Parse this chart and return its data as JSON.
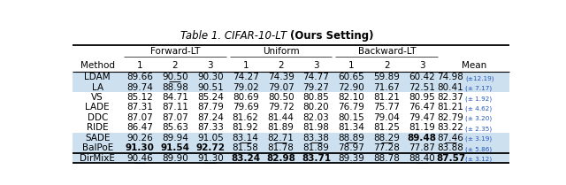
{
  "title_italic": "Table 1. CIFAR-10-LT ",
  "title_bold": "(Ours Setting)",
  "groups": [
    "Forward-LT",
    "Uniform",
    "Backward-LT"
  ],
  "methods": [
    "LDAM",
    "LA",
    "VS",
    "LADE",
    "DDC",
    "RIDE",
    "SADE",
    "BalPoE",
    "DirMixE"
  ],
  "data": {
    "LDAM": [
      [
        "89.66",
        "90.50",
        "90.30"
      ],
      [
        "74.27",
        "74.39",
        "74.77"
      ],
      [
        "60.65",
        "59.89",
        "60.42"
      ],
      "74.98",
      "±12.19"
    ],
    "LA": [
      [
        "89.74",
        "88.98",
        "90.51"
      ],
      [
        "79.02",
        "79.07",
        "79.27"
      ],
      [
        "72.90",
        "71.67",
        "72.51"
      ],
      "80.41",
      "± 7.17"
    ],
    "VS": [
      [
        "85.12",
        "84.71",
        "85.24"
      ],
      [
        "80.69",
        "80.50",
        "80.85"
      ],
      [
        "82.10",
        "81.21",
        "80.95"
      ],
      "82.37",
      "± 1.92"
    ],
    "LADE": [
      [
        "87.31",
        "87.11",
        "87.79"
      ],
      [
        "79.69",
        "79.72",
        "80.20"
      ],
      [
        "76.79",
        "75.77",
        "76.47"
      ],
      "81.21",
      "± 4.62"
    ],
    "DDC": [
      [
        "87.07",
        "87.07",
        "87.24"
      ],
      [
        "81.62",
        "81.44",
        "82.03"
      ],
      [
        "80.15",
        "79.04",
        "79.47"
      ],
      "82.79",
      "± 3.20"
    ],
    "RIDE": [
      [
        "86.47",
        "85.63",
        "87.33"
      ],
      [
        "81.92",
        "81.89",
        "81.98"
      ],
      [
        "81.34",
        "81.25",
        "81.19"
      ],
      "83.22",
      "± 2.35"
    ],
    "SADE": [
      [
        "90.26",
        "89.94",
        "91.05"
      ],
      [
        "83.14",
        "82.71",
        "83.38"
      ],
      [
        "88.89",
        "88.29",
        "89.48"
      ],
      "87.46",
      "± 3.19"
    ],
    "BalPoE": [
      [
        "91.30",
        "91.54",
        "92.72"
      ],
      [
        "81.58",
        "81.78",
        "81.89"
      ],
      [
        "78.97",
        "77.28",
        "77.87"
      ],
      "83.88",
      "± 5.86"
    ],
    "DirMixE": [
      [
        "90.46",
        "89.90",
        "91.30"
      ],
      [
        "83.24",
        "82.98",
        "83.71"
      ],
      [
        "89.39",
        "88.78",
        "88.40"
      ],
      "87.57",
      "± 3.12"
    ]
  },
  "bold": {
    "LDAM": [
      [
        false,
        false,
        false
      ],
      [
        false,
        false,
        false
      ],
      [
        false,
        false,
        false
      ],
      false
    ],
    "LA": [
      [
        false,
        false,
        false
      ],
      [
        false,
        false,
        false
      ],
      [
        false,
        false,
        false
      ],
      false
    ],
    "VS": [
      [
        false,
        false,
        false
      ],
      [
        false,
        false,
        false
      ],
      [
        false,
        false,
        false
      ],
      false
    ],
    "LADE": [
      [
        false,
        false,
        false
      ],
      [
        false,
        false,
        false
      ],
      [
        false,
        false,
        false
      ],
      false
    ],
    "DDC": [
      [
        false,
        false,
        false
      ],
      [
        false,
        false,
        false
      ],
      [
        false,
        false,
        false
      ],
      false
    ],
    "RIDE": [
      [
        false,
        false,
        false
      ],
      [
        false,
        false,
        false
      ],
      [
        false,
        false,
        false
      ],
      false
    ],
    "SADE": [
      [
        false,
        false,
        false
      ],
      [
        false,
        false,
        false
      ],
      [
        false,
        false,
        true
      ],
      false
    ],
    "BalPoE": [
      [
        true,
        true,
        true
      ],
      [
        false,
        false,
        false
      ],
      [
        false,
        false,
        false
      ],
      false
    ],
    "DirMixE": [
      [
        false,
        false,
        false
      ],
      [
        true,
        true,
        true
      ],
      [
        false,
        false,
        false
      ],
      true
    ]
  },
  "underline": {
    "LDAM": [
      [
        false,
        true,
        false
      ],
      [
        false,
        false,
        false
      ],
      [
        false,
        false,
        false
      ],
      false
    ],
    "LA": [
      [
        false,
        false,
        false
      ],
      [
        false,
        false,
        false
      ],
      [
        false,
        false,
        false
      ],
      false
    ],
    "VS": [
      [
        false,
        false,
        false
      ],
      [
        false,
        false,
        false
      ],
      [
        false,
        false,
        false
      ],
      false
    ],
    "LADE": [
      [
        false,
        false,
        false
      ],
      [
        false,
        false,
        false
      ],
      [
        false,
        false,
        false
      ],
      false
    ],
    "DDC": [
      [
        false,
        false,
        false
      ],
      [
        false,
        false,
        false
      ],
      [
        false,
        false,
        false
      ],
      false
    ],
    "RIDE": [
      [
        false,
        false,
        false
      ],
      [
        false,
        false,
        false
      ],
      [
        false,
        false,
        false
      ],
      false
    ],
    "SADE": [
      [
        false,
        false,
        false
      ],
      [
        true,
        true,
        true
      ],
      [
        true,
        true,
        false
      ],
      true
    ],
    "BalPoE": [
      [
        false,
        false,
        false
      ],
      [
        false,
        false,
        false
      ],
      [
        false,
        false,
        false
      ],
      false
    ],
    "DirMixE": [
      [
        true,
        false,
        true
      ],
      [
        false,
        false,
        false
      ],
      [
        false,
        false,
        true
      ],
      false
    ]
  },
  "highlight_rows": [
    "LDAM",
    "LA",
    "SADE",
    "BalPoE",
    "DirMixE"
  ],
  "highlight_color": "#cce0f0",
  "bg_color": "#ffffff",
  "mean_color": "#2255bb"
}
